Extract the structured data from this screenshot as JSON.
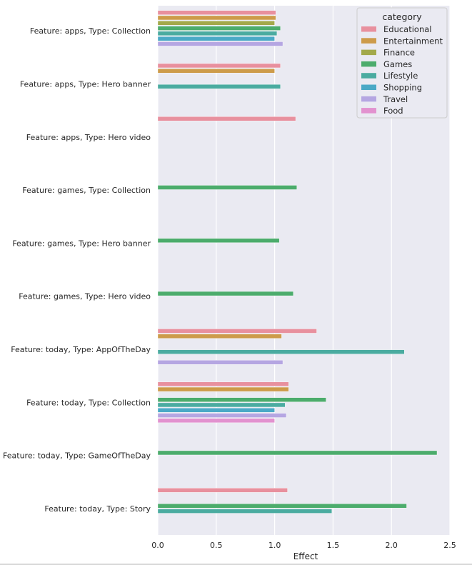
{
  "chart_data": {
    "type": "bar",
    "orientation": "horizontal",
    "xlabel": "Effect",
    "ylabel": "",
    "xlim": [
      0,
      2.5
    ],
    "xticks": [
      0,
      0.5,
      1,
      1.5,
      2,
      2.5
    ],
    "xtick_labels": [
      "0.0",
      "0.5",
      "1.0",
      "1.5",
      "2.0",
      "2.5"
    ],
    "grid": true,
    "legend_title": "category",
    "legend_position": "top-right",
    "categories": [
      "Feature: apps, Type: Collection",
      "Feature: apps, Type: Hero banner",
      "Feature: apps, Type: Hero video",
      "Feature: games, Type: Collection",
      "Feature: games, Type: Hero banner",
      "Feature: games, Type: Hero video",
      "Feature: today, Type: AppOfTheDay",
      "Feature: today, Type: Collection",
      "Feature: today, Type: GameOfTheDay",
      "Feature: today, Type: Story"
    ],
    "series": [
      {
        "name": "Educational",
        "color": "#e8909e",
        "values": [
          1.01,
          1.05,
          1.18,
          null,
          null,
          null,
          1.36,
          1.12,
          null,
          1.11
        ]
      },
      {
        "name": "Entertainment",
        "color": "#cd9b4a",
        "values": [
          1.01,
          1.0,
          null,
          null,
          null,
          null,
          1.06,
          1.12,
          null,
          null
        ]
      },
      {
        "name": "Finance",
        "color": "#a3a94a",
        "values": [
          1.0,
          null,
          null,
          null,
          null,
          null,
          null,
          null,
          null,
          null
        ]
      },
      {
        "name": "Games",
        "color": "#4cac6c",
        "values": [
          1.05,
          null,
          null,
          1.19,
          1.04,
          1.16,
          null,
          1.44,
          2.39,
          2.13
        ]
      },
      {
        "name": "Lifestyle",
        "color": "#4aaba0",
        "values": [
          1.02,
          1.05,
          null,
          null,
          null,
          null,
          2.11,
          1.09,
          null,
          1.49
        ]
      },
      {
        "name": "Shopping",
        "color": "#4aa9c6",
        "values": [
          1.0,
          null,
          null,
          null,
          null,
          null,
          null,
          1.0,
          null,
          null
        ]
      },
      {
        "name": "Travel",
        "color": "#b5a6e2",
        "values": [
          1.07,
          null,
          null,
          null,
          null,
          null,
          1.07,
          1.1,
          null,
          null
        ]
      },
      {
        "name": "Food",
        "color": "#e292cf",
        "values": [
          null,
          null,
          null,
          null,
          null,
          null,
          null,
          1.0,
          null,
          null
        ]
      }
    ]
  }
}
